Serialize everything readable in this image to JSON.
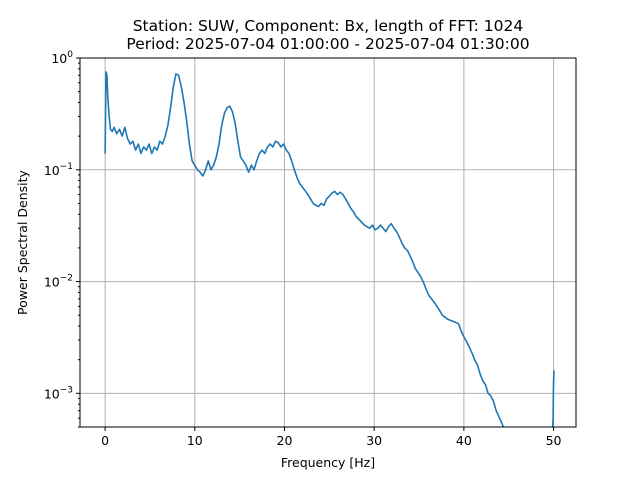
{
  "chart_data": {
    "type": "line",
    "title_line1": "Station: SUW, Component: Bx, length of FFT: 1024",
    "title_line2": "Period: 2025-07-04 01:00:00 - 2025-07-04 01:30:00",
    "xlabel": "Frequency [Hz]",
    "ylabel": "Power Spectral Density",
    "xlim": [
      -2.8,
      52.5
    ],
    "ylim": [
      0.0005,
      1
    ],
    "yscale": "log",
    "grid": true,
    "series_color": "#1f77b4",
    "x_ticks": [
      {
        "value": 0,
        "label": "0"
      },
      {
        "value": 10,
        "label": "10"
      },
      {
        "value": 20,
        "label": "20"
      },
      {
        "value": 30,
        "label": "30"
      },
      {
        "value": 40,
        "label": "40"
      },
      {
        "value": 50,
        "label": "50"
      }
    ],
    "y_ticks": [
      {
        "value": 0.001,
        "base": "10",
        "exp": "−3"
      },
      {
        "value": 0.01,
        "base": "10",
        "exp": "−2"
      },
      {
        "value": 0.1,
        "base": "10",
        "exp": "−1"
      },
      {
        "value": 1,
        "base": "10",
        "exp": "0"
      }
    ],
    "series": [
      {
        "x": [
          0,
          0.1,
          0.2,
          0.3,
          0.45,
          0.6,
          0.8,
          1.0,
          1.3,
          1.6,
          1.9,
          2.2,
          2.5,
          2.8,
          3.1,
          3.4,
          3.7,
          4.0,
          4.3,
          4.6,
          4.9,
          5.2,
          5.5,
          5.8,
          6.1,
          6.4,
          6.7,
          7.0,
          7.3,
          7.6,
          7.9,
          8.2,
          8.5,
          8.8,
          9.1,
          9.4,
          9.7,
          10.0,
          10.3,
          10.6,
          10.9,
          11.2,
          11.5,
          11.8,
          12.1,
          12.4,
          12.7,
          13.0,
          13.3,
          13.6,
          13.9,
          14.2,
          14.5,
          14.8,
          15.1,
          15.4,
          15.7,
          16.0,
          16.3,
          16.6,
          16.9,
          17.2,
          17.5,
          17.8,
          18.1,
          18.4,
          18.7,
          19.0,
          19.3,
          19.6,
          19.9,
          20.2,
          20.5,
          20.8,
          21.1,
          21.4,
          21.7,
          22.0,
          22.3,
          22.6,
          22.9,
          23.2,
          23.5,
          23.8,
          24.1,
          24.4,
          24.7,
          25.0,
          25.3,
          25.6,
          25.9,
          26.2,
          26.5,
          26.8,
          27.1,
          27.4,
          27.7,
          28.0,
          28.3,
          28.6,
          28.9,
          29.2,
          29.5,
          29.8,
          30.1,
          30.4,
          30.7,
          31.0,
          31.3,
          31.6,
          31.9,
          32.2,
          32.5,
          32.8,
          33.1,
          33.4,
          33.7,
          34.0,
          34.3,
          34.6,
          34.9,
          35.2,
          35.5,
          35.8,
          36.1,
          36.4,
          36.7,
          37.0,
          37.3,
          37.6,
          37.9,
          38.2,
          38.5,
          38.8,
          39.1,
          39.4,
          39.7,
          40.0,
          40.3,
          40.6,
          40.9,
          41.2,
          41.5,
          41.8,
          42.1,
          42.4,
          42.7,
          43.0,
          43.3,
          43.6,
          43.9,
          44.2,
          44.4
        ],
        "y": [
          0.14,
          0.75,
          0.7,
          0.45,
          0.3,
          0.23,
          0.22,
          0.24,
          0.21,
          0.23,
          0.2,
          0.24,
          0.19,
          0.17,
          0.18,
          0.15,
          0.17,
          0.14,
          0.16,
          0.15,
          0.17,
          0.14,
          0.16,
          0.15,
          0.18,
          0.17,
          0.2,
          0.25,
          0.36,
          0.55,
          0.72,
          0.7,
          0.55,
          0.4,
          0.27,
          0.17,
          0.12,
          0.11,
          0.1,
          0.095,
          0.088,
          0.1,
          0.12,
          0.1,
          0.11,
          0.13,
          0.17,
          0.25,
          0.32,
          0.36,
          0.37,
          0.33,
          0.26,
          0.18,
          0.13,
          0.12,
          0.11,
          0.095,
          0.11,
          0.1,
          0.12,
          0.14,
          0.15,
          0.14,
          0.16,
          0.17,
          0.16,
          0.18,
          0.175,
          0.16,
          0.17,
          0.15,
          0.14,
          0.12,
          0.1,
          0.085,
          0.075,
          0.07,
          0.065,
          0.06,
          0.055,
          0.05,
          0.048,
          0.047,
          0.05,
          0.048,
          0.055,
          0.058,
          0.062,
          0.064,
          0.06,
          0.063,
          0.06,
          0.055,
          0.05,
          0.045,
          0.042,
          0.038,
          0.036,
          0.034,
          0.032,
          0.031,
          0.03,
          0.032,
          0.029,
          0.03,
          0.032,
          0.03,
          0.028,
          0.031,
          0.033,
          0.03,
          0.028,
          0.025,
          0.022,
          0.02,
          0.019,
          0.017,
          0.015,
          0.013,
          0.012,
          0.011,
          0.0098,
          0.0085,
          0.0075,
          0.007,
          0.0065,
          0.006,
          0.0055,
          0.005,
          0.0048,
          0.0046,
          0.0045,
          0.0044,
          0.0043,
          0.0042,
          0.0036,
          0.0032,
          0.0029,
          0.0026,
          0.0023,
          0.002,
          0.0018,
          0.0015,
          0.0013,
          0.0012,
          0.001,
          0.00095,
          0.00085,
          0.0007,
          0.00062,
          0.00055,
          0.0005
        ]
      },
      {
        "x": [
          49.9,
          49.95,
          49.97,
          50.0,
          50.05
        ],
        "y": [
          0.0005,
          0.0006,
          0.0009,
          0.0013,
          0.0016
        ]
      }
    ]
  }
}
